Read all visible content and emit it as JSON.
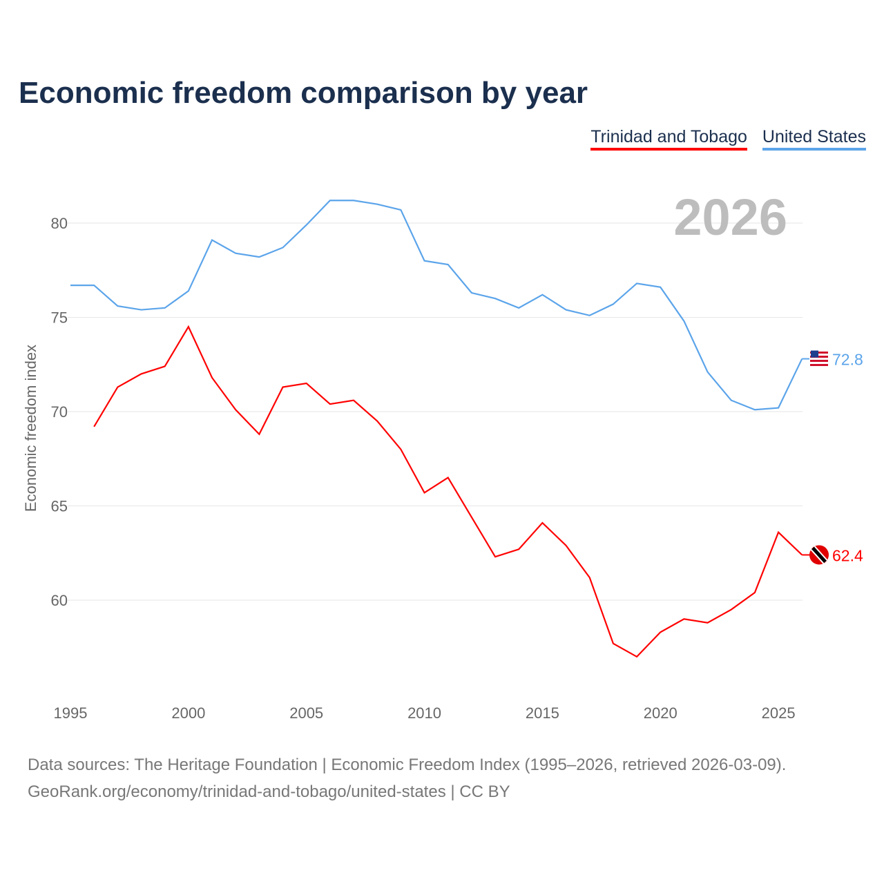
{
  "title": "Economic freedom comparison by year",
  "legend": [
    {
      "label": "Trinidad and Tobago",
      "color": "#ff0000"
    },
    {
      "label": "United States",
      "color": "#5ba4ea"
    }
  ],
  "year_label": "2026",
  "source_line1": "Data sources: The Heritage Foundation | Economic Freedom Index (1995–2026, retrieved 2026-03-09).",
  "source_line2": "GeoRank.org/economy/trinidad-and-tobago/united-states | CC BY",
  "chart_data": {
    "type": "line",
    "title": "Economic freedom comparison by year",
    "xlabel": "",
    "ylabel": "Economic freedom index",
    "xlim": [
      1995,
      2026
    ],
    "ylim": [
      55,
      82.7
    ],
    "xticks": [
      1995,
      2000,
      2005,
      2010,
      2015,
      2020,
      2025
    ],
    "yticks": [
      60,
      65,
      70,
      75,
      80
    ],
    "grid": true,
    "legend_position": "top-right",
    "series": [
      {
        "name": "Trinidad and Tobago",
        "color": "#ff0000",
        "end_label": "62.4",
        "flag": "trinidad-and-tobago-flag",
        "x": [
          1996,
          1997,
          1998,
          1999,
          2000,
          2001,
          2002,
          2003,
          2004,
          2005,
          2006,
          2007,
          2008,
          2009,
          2010,
          2011,
          2012,
          2013,
          2014,
          2015,
          2016,
          2017,
          2018,
          2019,
          2020,
          2021,
          2022,
          2023,
          2024,
          2025,
          2026
        ],
        "y": [
          69.2,
          71.3,
          72.0,
          72.4,
          74.5,
          71.8,
          70.1,
          68.8,
          71.3,
          71.5,
          70.4,
          70.6,
          69.5,
          68.0,
          65.7,
          66.5,
          64.4,
          62.3,
          62.7,
          64.1,
          62.9,
          61.2,
          57.7,
          57.0,
          58.3,
          59.0,
          58.8,
          59.5,
          60.4,
          63.6,
          62.4
        ]
      },
      {
        "name": "United States",
        "color": "#5ba4ea",
        "end_label": "72.8",
        "flag": "united-states-flag",
        "x": [
          1995,
          1996,
          1997,
          1998,
          1999,
          2000,
          2001,
          2002,
          2003,
          2004,
          2005,
          2006,
          2007,
          2008,
          2009,
          2010,
          2011,
          2012,
          2013,
          2014,
          2015,
          2016,
          2017,
          2018,
          2019,
          2020,
          2021,
          2022,
          2023,
          2024,
          2025,
          2026
        ],
        "y": [
          76.7,
          76.7,
          75.6,
          75.4,
          75.5,
          76.4,
          79.1,
          78.4,
          78.2,
          78.7,
          79.9,
          81.2,
          81.2,
          81.0,
          80.7,
          78.0,
          77.8,
          76.3,
          76.0,
          75.5,
          76.2,
          75.4,
          75.1,
          75.7,
          76.8,
          76.6,
          74.8,
          72.1,
          70.6,
          70.1,
          70.2,
          72.8
        ]
      }
    ]
  }
}
